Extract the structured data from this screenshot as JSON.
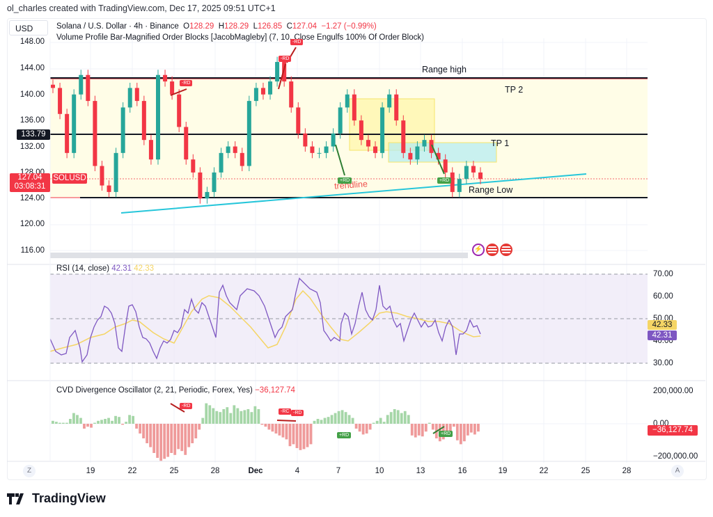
{
  "credit": "ol_charles created with TradingView.com, Dec 17, 2025 09:51 UTC+1",
  "currency_button": "USD",
  "main_legend": {
    "symbol": "Solana / U.S. Dollar · 4h · Binance",
    "o_label": "O",
    "o": "128.29",
    "h_label": "H",
    "h": "128.29",
    "l_label": "L",
    "l": "126.85",
    "c_label": "C",
    "c": "127.04",
    "change": "−1.27 (−0.99%)"
  },
  "indicator_legend": "Volume Profile Bar-Magnified Order Blocks [JacobMagleby] (7, 10, Close Engulfs 100% Of Order Block)",
  "price_axis": [
    "148.00",
    "144.00",
    "140.00",
    "136.00",
    "132.00",
    "128.00",
    "124.00",
    "120.00",
    "116.00"
  ],
  "price_tags": {
    "level": "133.79",
    "last_price": "127.04",
    "countdown": "03:08:31",
    "symbol_tag": "SOLUSD"
  },
  "annotations": {
    "range_high": "Range high",
    "tp2": "TP 2",
    "tp1": "TP 1",
    "range_low": "Range Low",
    "trendline": "trendline",
    "rd_neg": "-RD",
    "rd_pos": "+RD",
    "rc_neg": "-RC"
  },
  "rsi": {
    "legend": "RSI (14, close)",
    "value": "42.31",
    "ma_value": "42.33",
    "axis": [
      "70.00",
      "60.00",
      "50.00",
      "40.00",
      "30.00"
    ],
    "colors": {
      "rsi": "#7e57c2",
      "ma": "#f5d565"
    }
  },
  "cvd": {
    "legend": "CVD Divergence Oscillator (2, 21, Periodic, Forex, Yes)",
    "value": "−36,127.74",
    "axis": [
      "200,000.00",
      "0.00",
      "−200,000.00"
    ]
  },
  "time_axis": {
    "labels": [
      "19",
      "22",
      "25",
      "28",
      "Dec",
      "4",
      "7",
      "10",
      "13",
      "16",
      "19",
      "22",
      "25",
      "28"
    ],
    "left_button": "Z",
    "right_button": "A"
  },
  "brand": "TradingView",
  "colors": {
    "up": "#26a69a",
    "down": "#f23645",
    "range_fill": "#fffde7",
    "trendline": "#26c6da",
    "ob_yellow": "#fff59d",
    "ob_teal": "#b2ebf2"
  },
  "chart_data": [
    {
      "type": "candlestick",
      "title": "Solana / U.S. Dollar · 4h · Binance",
      "ohlc_last": {
        "open": 128.29,
        "high": 128.29,
        "low": 126.85,
        "close": 127.04
      },
      "ylim": [
        116,
        149
      ],
      "y_ticks": [
        116,
        120,
        124,
        128,
        132,
        136,
        140,
        144,
        148
      ],
      "x_ticks": [
        "19",
        "22",
        "25",
        "28",
        "Dec",
        "4",
        "7",
        "10",
        "13",
        "16",
        "19",
        "22",
        "25",
        "28"
      ],
      "levels": {
        "range_high": 142.6,
        "mid_level": 133.79,
        "range_low": 124.0
      },
      "approx_closes": [
        141,
        137,
        131,
        140,
        143,
        139,
        129,
        126,
        125,
        131,
        138,
        141,
        139,
        133,
        130,
        143,
        142,
        140,
        135,
        130,
        128,
        124,
        125,
        128,
        131,
        132,
        131,
        129,
        139,
        141,
        140,
        142,
        145,
        142,
        138,
        134,
        132,
        131,
        131,
        132,
        134,
        138,
        140,
        136,
        133,
        132,
        131,
        138,
        140,
        136,
        131,
        130,
        132,
        133,
        131,
        130,
        128,
        125,
        127,
        129,
        128,
        127
      ]
    },
    {
      "type": "line",
      "title": "RSI (14, close)",
      "series": [
        {
          "name": "RSI",
          "last": 42.31
        },
        {
          "name": "RSI-based MA",
          "last": 42.33
        }
      ],
      "ylim": [
        28,
        72
      ],
      "bands": [
        30,
        50,
        70
      ]
    },
    {
      "type": "bar",
      "title": "CVD Divergence Oscillator (2, 21, Periodic, Forex, Yes)",
      "last": -36127.74,
      "ylim": [
        -220000,
        220000
      ],
      "y_ticks": [
        -200000,
        0,
        200000
      ]
    }
  ]
}
